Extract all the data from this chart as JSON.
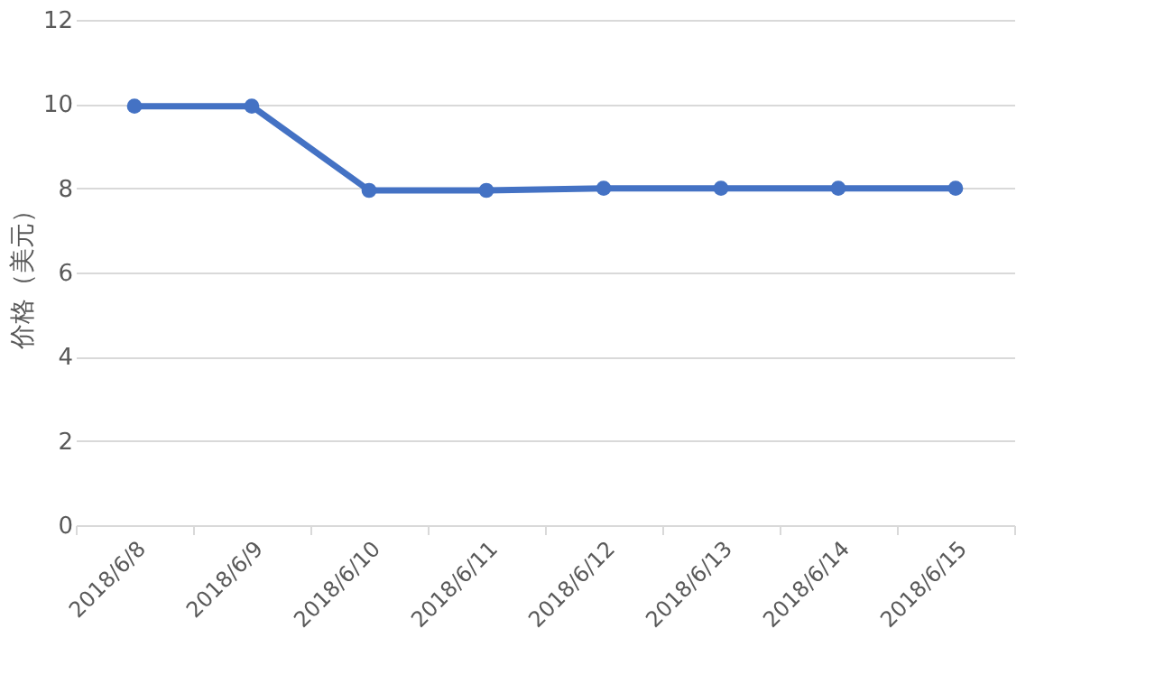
{
  "chart_data": {
    "type": "line",
    "ylabel": "价格（美元）",
    "categories": [
      "2018/6/8",
      "2018/6/9",
      "2018/6/10",
      "2018/6/11",
      "2018/6/12",
      "2018/6/13",
      "2018/6/14",
      "2018/6/15"
    ],
    "series": [
      {
        "color": "#4472c4",
        "values": [
          9.95,
          9.95,
          7.95,
          7.95,
          8.0,
          8.0,
          8.0,
          8.0
        ]
      }
    ],
    "ylim": [
      0,
      12
    ],
    "yticks": [
      0,
      2,
      4,
      6,
      8,
      10,
      12
    ],
    "grid": "y",
    "marker": "circle",
    "line_style": "solid"
  }
}
